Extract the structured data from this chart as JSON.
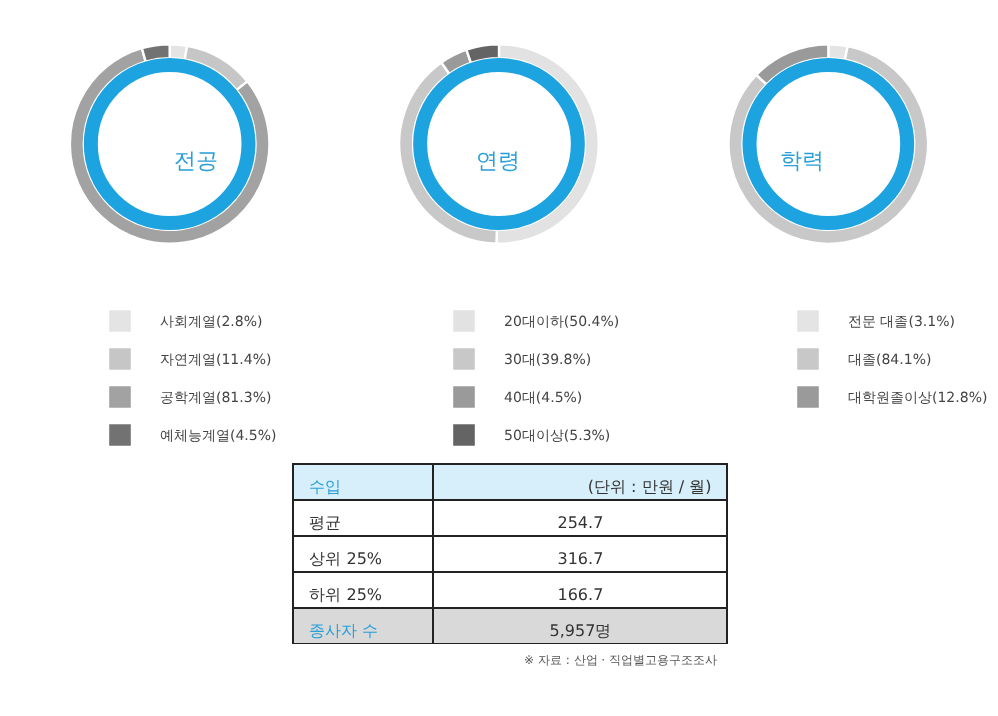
{
  "chart_data": [
    {
      "type": "donut",
      "title": "전공",
      "categories": [
        "사회계열(2.8%)",
        "자연계열(11.4%)",
        "공학계열(81.3%)",
        "예체능계열(4.5%)"
      ],
      "legend": "bottom",
      "colors": [
        "#e4e4e4",
        "#c6c6c6",
        "#a2a2a2",
        "#727272"
      ],
      "values": [
        2.8,
        11.4,
        81.3,
        4.5
      ]
    },
    {
      "type": "donut",
      "title": "연령",
      "categories": [
        "20대이하(50.4%)",
        "30대(39.8%)",
        "40대(4.5%)",
        "50대이상(5.3%)"
      ],
      "legend": "bottom",
      "colors": [
        "#e2e2e2",
        "#c8c8c8",
        "#9a9a9a",
        "#646464"
      ],
      "values": [
        50.4,
        39.8,
        4.5,
        5.3
      ]
    },
    {
      "type": "donut",
      "title": "학력",
      "categories": [
        "전문 대졸(3.1%)",
        "대졸(84.1%)",
        "대학원졸이상(12.8%)"
      ],
      "legend": "bottom",
      "colors": [
        "#e4e4e4",
        "#c8c8c8",
        "#9a9a9a"
      ],
      "values": [
        3.1,
        84.1,
        12.8
      ]
    },
    {
      "type": "other",
      "title": "수입",
      "subtitle": "(단위 : 만원 / 월)",
      "categories": [
        "평균",
        "상위 25%",
        "하위 25%",
        "종사자 수"
      ],
      "value_labels": [
        "254.7",
        "316.7",
        "166.7",
        "5,957명"
      ],
      "annotations": [
        "※ 자료 : 산업 · 직업별고용구조조사"
      ]
    }
  ]
}
